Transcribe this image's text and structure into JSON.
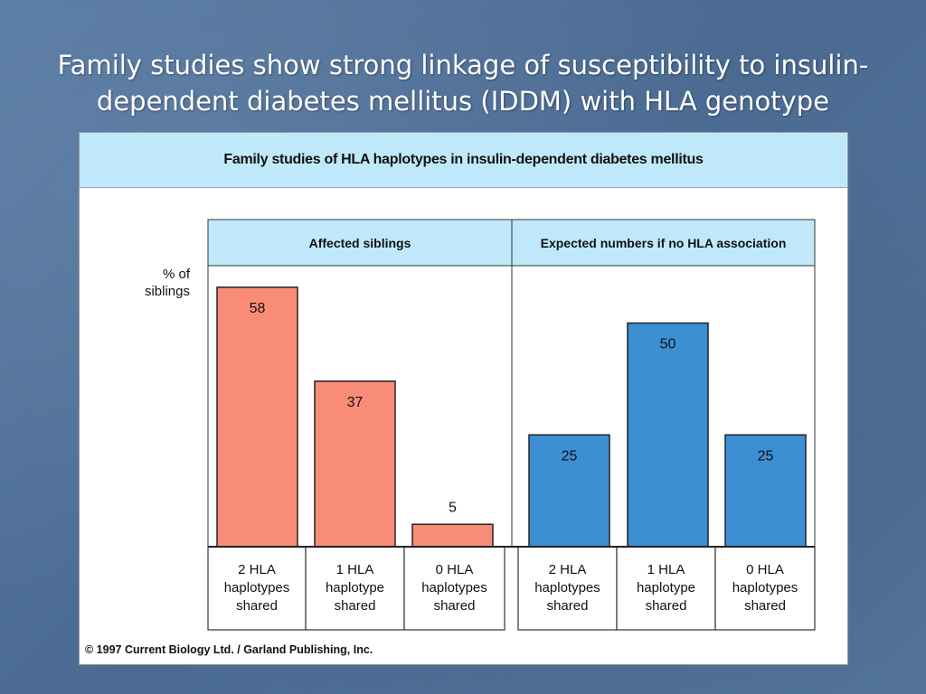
{
  "slide": {
    "title_line1": "Family studies show strong linkage of susceptibility to insulin-",
    "title_line2": "dependent diabetes mellitus (IDDM) with HLA genotype"
  },
  "figure": {
    "header": "Family studies of HLA haplotypes in insulin-dependent diabetes mellitus",
    "copyright": "© 1997 Current Biology Ltd. / Garland Publishing, Inc."
  },
  "chart_data": {
    "type": "bar",
    "title": "Family studies of HLA haplotypes in insulin-dependent diabetes mellitus",
    "ylabel": "% of siblings",
    "ylim": [
      0,
      65
    ],
    "grid": false,
    "colors": {
      "affected": "#f98c77",
      "expected": "#3d8fd4"
    },
    "panels": [
      {
        "name": "Affected siblings",
        "color": "#f98c77",
        "categories": [
          "2 HLA haplotypes shared",
          "1 HLA haplotype shared",
          "0 HLA haplotypes shared"
        ],
        "category_lines": [
          [
            "2 HLA",
            "haplotypes",
            "shared"
          ],
          [
            "1 HLA",
            "haplotype",
            "shared"
          ],
          [
            "0 HLA",
            "haplotypes",
            "shared"
          ]
        ],
        "values": [
          58,
          37,
          5
        ]
      },
      {
        "name": "Expected numbers if  no HLA association",
        "color": "#3d8fd4",
        "categories": [
          "2 HLA haplotypes shared",
          "1 HLA haplotype shared",
          "0 HLA haplotypes shared"
        ],
        "category_lines": [
          [
            "2 HLA",
            "haplotypes",
            "shared"
          ],
          [
            "1 HLA",
            "haplotype",
            "shared"
          ],
          [
            "0 HLA",
            "haplotypes",
            "shared"
          ]
        ],
        "values": [
          25,
          50,
          25
        ]
      }
    ]
  }
}
